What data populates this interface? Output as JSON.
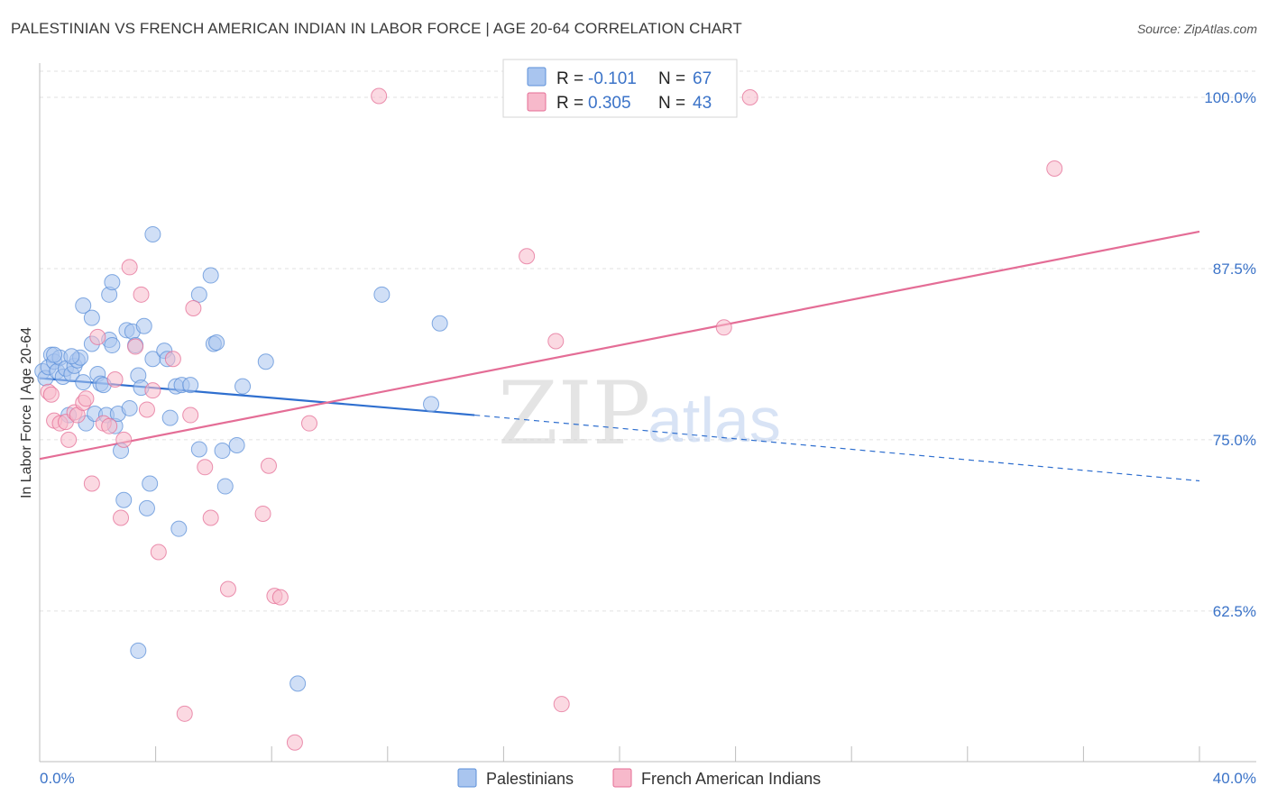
{
  "title": "PALESTINIAN VS FRENCH AMERICAN INDIAN IN LABOR FORCE | AGE 20-64 CORRELATION CHART",
  "source": "Source: ZipAtlas.com",
  "watermark": {
    "zip": "ZIP",
    "atlas": "atlas"
  },
  "legend": {
    "r_label": "R =",
    "n_label": "N =",
    "rows": [
      {
        "r": "-0.101",
        "n": "67",
        "color": "#a9c5ef"
      },
      {
        "r": "0.305",
        "n": "43",
        "color": "#f7b9cb"
      }
    ]
  },
  "bottom_legend": [
    "Palestinians",
    "French American Indians"
  ],
  "chart_data": {
    "type": "scatter",
    "title": "PALESTINIAN VS FRENCH AMERICAN INDIAN IN LABOR FORCE | AGE 20-64 CORRELATION CHART",
    "xlabel": "",
    "ylabel": "In Labor Force | Age 20-64",
    "xlim": [
      0,
      40
    ],
    "ylim": [
      51.5,
      102.5
    ],
    "x_tick_labels": [
      "0.0%",
      "40.0%"
    ],
    "y_ticks": [
      62.5,
      75.0,
      87.5,
      100.0
    ],
    "y_tick_labels": [
      "62.5%",
      "75.0%",
      "87.5%",
      "100.0%"
    ],
    "grid": true,
    "series": [
      {
        "name": "Palestinians",
        "color": "#5b8fd8",
        "fill": "#a9c5ef",
        "trend": {
          "x0": 0,
          "y0": 79.5,
          "x1": 15.0,
          "y1": 76.8,
          "dash_to_x": 40,
          "dash_to_y": 72.0
        },
        "points": [
          [
            0.1,
            80.0
          ],
          [
            0.2,
            79.5
          ],
          [
            0.3,
            80.3
          ],
          [
            0.4,
            81.2
          ],
          [
            0.5,
            80.7
          ],
          [
            0.6,
            80.0
          ],
          [
            0.7,
            81.0
          ],
          [
            0.8,
            79.6
          ],
          [
            0.9,
            80.2
          ],
          [
            1.0,
            76.8
          ],
          [
            1.1,
            79.8
          ],
          [
            1.2,
            80.4
          ],
          [
            1.3,
            80.8
          ],
          [
            1.4,
            81.0
          ],
          [
            1.5,
            79.2
          ],
          [
            1.6,
            76.2
          ],
          [
            1.8,
            82.0
          ],
          [
            1.9,
            76.9
          ],
          [
            2.0,
            79.8
          ],
          [
            2.1,
            79.1
          ],
          [
            2.2,
            79.0
          ],
          [
            2.3,
            76.8
          ],
          [
            2.4,
            82.3
          ],
          [
            2.5,
            81.9
          ],
          [
            2.6,
            76.0
          ],
          [
            2.7,
            76.9
          ],
          [
            2.8,
            74.2
          ],
          [
            2.9,
            70.6
          ],
          [
            3.0,
            83.0
          ],
          [
            3.1,
            77.3
          ],
          [
            3.2,
            82.9
          ],
          [
            3.3,
            81.9
          ],
          [
            3.4,
            79.7
          ],
          [
            3.5,
            78.8
          ],
          [
            3.6,
            83.3
          ],
          [
            3.7,
            70.0
          ],
          [
            3.8,
            71.8
          ],
          [
            3.9,
            80.9
          ],
          [
            4.3,
            81.5
          ],
          [
            4.4,
            80.9
          ],
          [
            4.5,
            76.6
          ],
          [
            4.7,
            78.9
          ],
          [
            4.9,
            79.0
          ],
          [
            5.2,
            79.0
          ],
          [
            5.5,
            74.3
          ],
          [
            6.0,
            82.0
          ],
          [
            6.1,
            82.1
          ],
          [
            6.3,
            74.2
          ],
          [
            6.4,
            71.6
          ],
          [
            6.8,
            74.6
          ],
          [
            7.0,
            78.9
          ],
          [
            7.8,
            80.7
          ],
          [
            1.5,
            84.8
          ],
          [
            1.8,
            83.9
          ],
          [
            2.4,
            85.6
          ],
          [
            2.5,
            86.5
          ],
          [
            5.5,
            85.6
          ],
          [
            5.9,
            87.0
          ],
          [
            3.9,
            90.0
          ],
          [
            11.8,
            85.6
          ],
          [
            13.8,
            83.5
          ],
          [
            4.8,
            68.5
          ],
          [
            3.4,
            59.6
          ],
          [
            8.9,
            57.2
          ],
          [
            13.5,
            77.6
          ],
          [
            0.5,
            81.2
          ],
          [
            1.1,
            81.1
          ]
        ]
      },
      {
        "name": "French American Indians",
        "color": "#e46d96",
        "fill": "#f7b9cb",
        "trend": {
          "x0": 0,
          "y0": 73.6,
          "x1": 40,
          "y1": 90.2
        },
        "points": [
          [
            0.3,
            78.5
          ],
          [
            0.5,
            76.4
          ],
          [
            0.7,
            76.2
          ],
          [
            0.9,
            76.3
          ],
          [
            1.0,
            75.0
          ],
          [
            1.2,
            77.0
          ],
          [
            1.3,
            76.8
          ],
          [
            1.5,
            77.7
          ],
          [
            1.6,
            78.0
          ],
          [
            1.8,
            71.8
          ],
          [
            2.0,
            82.5
          ],
          [
            2.2,
            76.2
          ],
          [
            2.4,
            76.0
          ],
          [
            2.6,
            79.4
          ],
          [
            2.8,
            69.3
          ],
          [
            2.9,
            75.0
          ],
          [
            3.1,
            87.6
          ],
          [
            3.3,
            81.8
          ],
          [
            3.5,
            85.6
          ],
          [
            3.7,
            77.2
          ],
          [
            3.9,
            78.6
          ],
          [
            4.1,
            66.8
          ],
          [
            4.6,
            80.9
          ],
          [
            5.3,
            84.6
          ],
          [
            5.2,
            76.8
          ],
          [
            5.7,
            73.0
          ],
          [
            5.9,
            69.3
          ],
          [
            6.5,
            64.1
          ],
          [
            7.7,
            69.6
          ],
          [
            7.9,
            73.1
          ],
          [
            8.1,
            63.6
          ],
          [
            8.3,
            63.5
          ],
          [
            8.8,
            52.9
          ],
          [
            9.3,
            76.2
          ],
          [
            5.0,
            55.0
          ],
          [
            11.7,
            100.1
          ],
          [
            16.8,
            88.4
          ],
          [
            17.8,
            82.2
          ],
          [
            18.0,
            55.7
          ],
          [
            23.6,
            83.2
          ],
          [
            24.5,
            100.0
          ],
          [
            35.0,
            94.8
          ],
          [
            0.4,
            78.3
          ]
        ]
      }
    ]
  }
}
